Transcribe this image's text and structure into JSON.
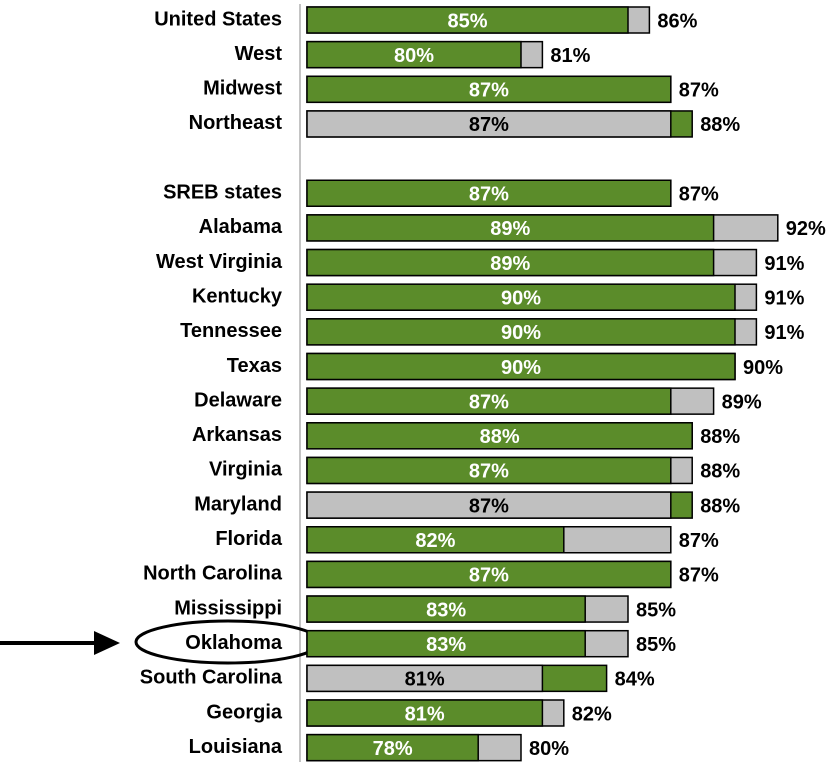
{
  "chart_data": {
    "type": "bar",
    "orientation": "horizontal",
    "categories": [
      "United States",
      "West",
      "Midwest",
      "Northeast",
      null,
      "SREB states",
      "Alabama",
      "West Virginia",
      "Kentucky",
      "Tennessee",
      "Texas",
      "Delaware",
      "Arkansas",
      "Virginia",
      "Maryland",
      "Florida",
      "North Carolina",
      "Mississippi",
      "Oklahoma",
      "South Carolina",
      "Georgia",
      "Louisiana"
    ],
    "xlim": [
      70,
      95
    ],
    "series": [
      {
        "values": [
          86,
          81,
          87,
          88,
          null,
          87,
          92,
          91,
          91,
          91,
          90,
          89,
          88,
          88,
          88,
          87,
          87,
          85,
          85,
          84,
          82,
          80
        ],
        "value_labels": [
          "86%",
          "81%",
          "87%",
          "88%",
          null,
          "87%",
          "92%",
          "91%",
          "91%",
          "91%",
          "90%",
          "89%",
          "88%",
          "88%",
          "88%",
          "87%",
          "87%",
          "85%",
          "85%",
          "84%",
          "82%",
          "80%"
        ],
        "colors": [
          "#c0c0c0",
          "#c0c0c0",
          "#5b8c2a",
          "#5b8c2a",
          null,
          "#5b8c2a",
          "#c0c0c0",
          "#c0c0c0",
          "#c0c0c0",
          "#c0c0c0",
          "#5b8c2a",
          "#c0c0c0",
          "#5b8c2a",
          "#c0c0c0",
          "#5b8c2a",
          "#c0c0c0",
          "#5b8c2a",
          "#c0c0c0",
          "#c0c0c0",
          "#5b8c2a",
          "#c0c0c0",
          "#c0c0c0"
        ]
      },
      {
        "values": [
          85,
          80,
          87,
          87,
          null,
          87,
          89,
          89,
          90,
          90,
          90,
          87,
          88,
          87,
          87,
          82,
          87,
          83,
          83,
          81,
          81,
          78
        ],
        "value_labels": [
          "85%",
          "80%",
          "87%",
          "87%",
          null,
          "87%",
          "89%",
          "89%",
          "90%",
          "90%",
          "90%",
          "87%",
          "88%",
          "87%",
          "87%",
          "82%",
          "87%",
          "83%",
          "83%",
          "81%",
          "81%",
          "78%"
        ],
        "colors": [
          "#5b8c2a",
          "#5b8c2a",
          "#5b8c2a",
          "#c0c0c0",
          null,
          "#5b8c2a",
          "#5b8c2a",
          "#5b8c2a",
          "#5b8c2a",
          "#5b8c2a",
          "#5b8c2a",
          "#5b8c2a",
          "#5b8c2a",
          "#5b8c2a",
          "#c0c0c0",
          "#5b8c2a",
          "#5b8c2a",
          "#5b8c2a",
          "#5b8c2a",
          "#c0c0c0",
          "#5b8c2a",
          "#5b8c2a"
        ]
      }
    ]
  }
}
